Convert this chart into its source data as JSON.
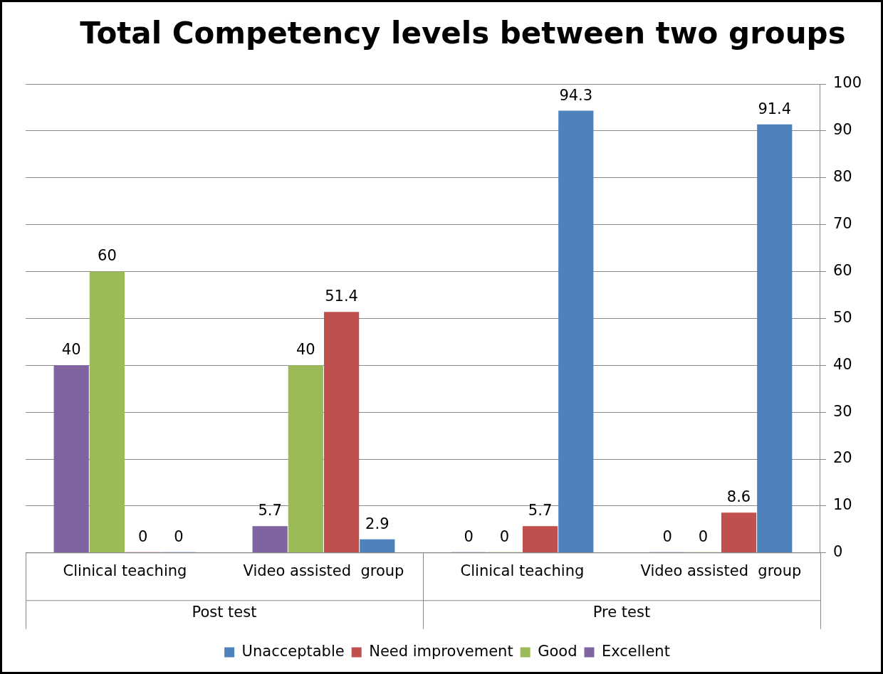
{
  "chart_data": {
    "type": "bar",
    "title": "Total Competency  levels between two groups",
    "categories": [
      "Clinical teaching",
      "Video assisted  group",
      "Clinical teaching",
      "Video assisted  group"
    ],
    "series": [
      {
        "name": "Excellent",
        "color": "#8064a2",
        "values": [
          40,
          5.7,
          0,
          0
        ]
      },
      {
        "name": "Good",
        "color": "#9bbb59",
        "values": [
          60,
          40,
          0,
          0
        ]
      },
      {
        "name": "Need improvement",
        "color": "#c0504d",
        "values": [
          0,
          51.4,
          5.7,
          8.6
        ]
      },
      {
        "name": "Unacceptable",
        "color": "#4f81bd",
        "values": [
          0,
          2.9,
          94.3,
          91.4
        ]
      }
    ],
    "annotations": [
      "Post test",
      "Pre test"
    ],
    "ylim": [
      0,
      100
    ],
    "yticks": [
      0,
      10,
      20,
      30,
      40,
      50,
      60,
      70,
      80,
      90,
      100
    ],
    "grid": "y",
    "legend": "bottom",
    "data_labels": true
  }
}
